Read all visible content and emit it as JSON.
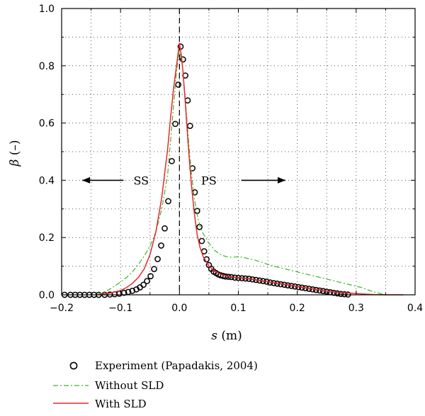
{
  "chart_data": {
    "type": "line",
    "xlabel_symbol": "s",
    "xlabel_unit": " (m)",
    "ylabel_symbol": "β",
    "ylabel_unit": " (–)",
    "xlim": [
      -0.2,
      0.4
    ],
    "ylim": [
      0.0,
      1.0
    ],
    "xticks": [
      -0.2,
      -0.1,
      0.0,
      0.1,
      0.2,
      0.3,
      0.4
    ],
    "xtick_labels": [
      "−0.2",
      "−0.1",
      "0.0",
      "0.1",
      "0.2",
      "0.3",
      "0.4"
    ],
    "yticks": [
      0.0,
      0.2,
      0.4,
      0.6,
      0.8,
      1.0
    ],
    "ytick_labels": [
      "0.0",
      "0.2",
      "0.4",
      "0.6",
      "0.8",
      "1.0"
    ],
    "grid": true,
    "vertical_reference_x": 0.0,
    "legend_position": "bottom",
    "annotations": [
      {
        "text": "SS",
        "x": -0.065,
        "y": 0.4,
        "arrow_from": -0.095,
        "arrow_to": -0.165
      },
      {
        "text": "PS",
        "x": 0.05,
        "y": 0.4,
        "arrow_from": 0.105,
        "arrow_to": 0.18
      }
    ],
    "series": [
      {
        "name": "Experiment (Papadakis, 2004)",
        "style": "markers",
        "color": "#000000",
        "x": [
          -0.195,
          -0.185,
          -0.177,
          -0.169,
          -0.161,
          -0.153,
          -0.145,
          -0.137,
          -0.127,
          -0.118,
          -0.11,
          -0.102,
          -0.094,
          -0.087,
          -0.08,
          -0.073,
          -0.067,
          -0.061,
          -0.055,
          -0.049,
          -0.043,
          -0.037,
          -0.031,
          -0.025,
          -0.019,
          -0.013,
          -0.007,
          -0.002,
          0.002,
          0.006,
          0.01,
          0.014,
          0.018,
          0.022,
          0.026,
          0.03,
          0.034,
          0.038,
          0.042,
          0.046,
          0.05,
          0.054,
          0.058,
          0.062,
          0.066,
          0.07,
          0.074,
          0.078,
          0.083,
          0.088,
          0.094,
          0.1,
          0.106,
          0.112,
          0.118,
          0.124,
          0.13,
          0.136,
          0.142,
          0.148,
          0.154,
          0.16,
          0.166,
          0.172,
          0.178,
          0.184,
          0.19,
          0.196,
          0.202,
          0.208,
          0.214,
          0.22,
          0.226,
          0.232,
          0.238,
          0.244,
          0.25,
          0.256,
          0.262,
          0.268,
          0.274,
          0.28,
          0.286
        ],
        "y": [
          0.0,
          0.0,
          0.0,
          0.0,
          0.0,
          0.0,
          0.0,
          0.0,
          0.0,
          0.001,
          0.002,
          0.004,
          0.007,
          0.01,
          0.014,
          0.019,
          0.026,
          0.035,
          0.048,
          0.065,
          0.09,
          0.125,
          0.172,
          0.232,
          0.327,
          0.467,
          0.597,
          0.734,
          0.867,
          0.822,
          0.766,
          0.679,
          0.59,
          0.442,
          0.358,
          0.293,
          0.237,
          0.188,
          0.152,
          0.124,
          0.104,
          0.091,
          0.081,
          0.076,
          0.071,
          0.068,
          0.066,
          0.064,
          0.063,
          0.062,
          0.06,
          0.059,
          0.058,
          0.057,
          0.056,
          0.054,
          0.052,
          0.05,
          0.048,
          0.046,
          0.043,
          0.041,
          0.039,
          0.037,
          0.035,
          0.033,
          0.031,
          0.029,
          0.027,
          0.025,
          0.023,
          0.021,
          0.019,
          0.017,
          0.015,
          0.013,
          0.011,
          0.009,
          0.007,
          0.005,
          0.003,
          0.002,
          0.001
        ]
      },
      {
        "name": "Without SLD",
        "style": "dash-dot",
        "color": "#3cb52e",
        "x": [
          -0.14,
          -0.13,
          -0.12,
          -0.11,
          -0.1,
          -0.09,
          -0.08,
          -0.07,
          -0.06,
          -0.05,
          -0.04,
          -0.03,
          -0.02,
          -0.015,
          -0.01,
          -0.005,
          0.0,
          0.005,
          0.01,
          0.015,
          0.02,
          0.025,
          0.03,
          0.035,
          0.04,
          0.05,
          0.06,
          0.07,
          0.08,
          0.09,
          0.1,
          0.11,
          0.12,
          0.13,
          0.14,
          0.15,
          0.17,
          0.19,
          0.21,
          0.23,
          0.25,
          0.27,
          0.29,
          0.31,
          0.33,
          0.35
        ],
        "y": [
          0.0,
          0.008,
          0.018,
          0.03,
          0.045,
          0.06,
          0.08,
          0.105,
          0.135,
          0.17,
          0.22,
          0.3,
          0.42,
          0.54,
          0.66,
          0.78,
          0.855,
          0.8,
          0.68,
          0.55,
          0.43,
          0.34,
          0.28,
          0.24,
          0.215,
          0.18,
          0.155,
          0.14,
          0.133,
          0.131,
          0.133,
          0.13,
          0.125,
          0.12,
          0.114,
          0.106,
          0.095,
          0.085,
          0.075,
          0.065,
          0.055,
          0.045,
          0.035,
          0.025,
          0.01,
          0.0
        ]
      },
      {
        "name": "With SLD",
        "style": "solid",
        "color": "#e8292b",
        "x": [
          -0.14,
          -0.12,
          -0.1,
          -0.09,
          -0.08,
          -0.07,
          -0.06,
          -0.05,
          -0.04,
          -0.03,
          -0.02,
          -0.015,
          -0.01,
          -0.005,
          0.0,
          0.003,
          0.006,
          0.01,
          0.015,
          0.02,
          0.025,
          0.03,
          0.035,
          0.04,
          0.05,
          0.06,
          0.07,
          0.08,
          0.09,
          0.1,
          0.11,
          0.12,
          0.13,
          0.14,
          0.15,
          0.17,
          0.19,
          0.21,
          0.23,
          0.25,
          0.27,
          0.29,
          0.31,
          0.33,
          0.35,
          0.38
        ],
        "y": [
          0.0,
          0.005,
          0.015,
          0.025,
          0.04,
          0.06,
          0.09,
          0.14,
          0.22,
          0.34,
          0.51,
          0.62,
          0.72,
          0.8,
          0.88,
          0.84,
          0.78,
          0.67,
          0.52,
          0.39,
          0.29,
          0.21,
          0.165,
          0.135,
          0.1,
          0.083,
          0.072,
          0.066,
          0.062,
          0.06,
          0.058,
          0.055,
          0.052,
          0.049,
          0.046,
          0.04,
          0.033,
          0.026,
          0.02,
          0.014,
          0.009,
          0.006,
          0.003,
          0.001,
          0.0,
          0.0
        ]
      }
    ]
  }
}
